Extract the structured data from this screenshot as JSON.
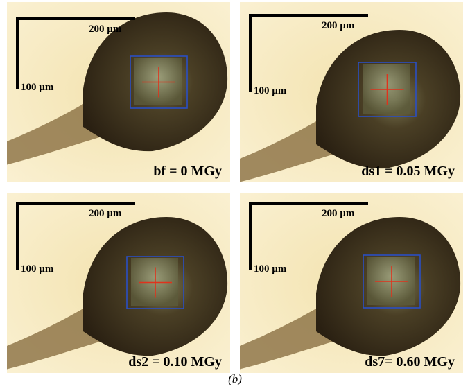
{
  "panels": [
    {
      "scale_horizontal": "200 µm",
      "scale_vertical": "100 µm",
      "label": "bf = 0 MGy"
    },
    {
      "scale_horizontal": "200 µm",
      "scale_vertical": "100 µm",
      "label": "ds1 = 0.05 MGy"
    },
    {
      "scale_horizontal": "200 µm",
      "scale_vertical": "100 µm",
      "label": "ds2 = 0.10 MGy"
    },
    {
      "scale_horizontal": "200 µm",
      "scale_vertical": "100 µm",
      "label": "ds7= 0.60 MGy"
    }
  ],
  "caption": "(b)"
}
